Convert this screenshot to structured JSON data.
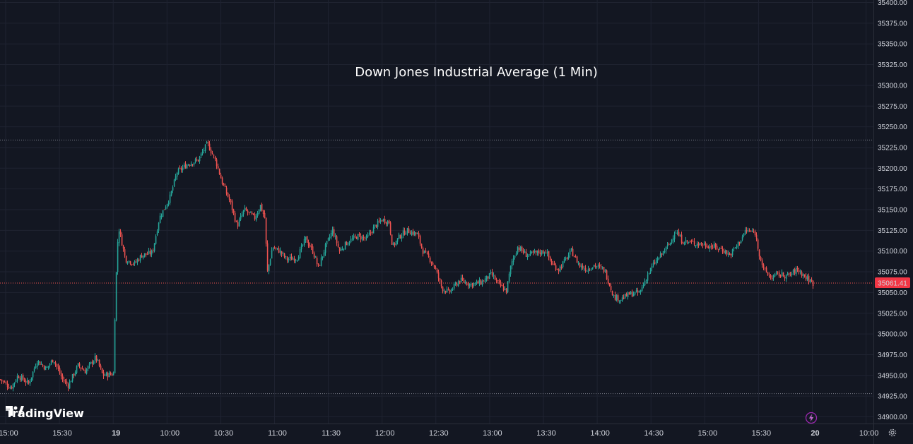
{
  "brand": {
    "name": "TradingView",
    "icon": "tradingview-logo"
  },
  "colors": {
    "background": "#131722",
    "grid": "#1f2331",
    "up": "#26a69a",
    "down": "#ef5350",
    "text": "#d1d4dc",
    "price_label_bg": "#f23645",
    "dotted_line": "#787b86"
  },
  "icons": {
    "settings": "gear-icon",
    "replay": "lightning-icon"
  },
  "chart_data": {
    "type": "candlestick",
    "title": "Down Jones Industrial Average (1 Min)",
    "xlabel": "",
    "ylabel": "",
    "ylim": [
      34887.5,
      35400
    ],
    "yticks": [
      "35400.00",
      "35375.00",
      "35350.00",
      "35325.00",
      "35300.00",
      "35275.00",
      "35250.00",
      "35225.00",
      "35200.00",
      "35175.00",
      "35150.00",
      "35125.00",
      "35100.00",
      "35075.00",
      "35050.00",
      "35025.00",
      "35000.00",
      "34975.00",
      "34950.00",
      "34925.00",
      "34900.00"
    ],
    "xticks": [
      "15:00",
      "15:30",
      "19",
      "10:00",
      "10:30",
      "11:00",
      "11:30",
      "12:00",
      "12:30",
      "13:00",
      "13:30",
      "14:00",
      "14:30",
      "15:00",
      "15:30",
      "20",
      "10:00"
    ],
    "last_price": 35061.41,
    "last_price_label": "35061.41",
    "high_line": 35234,
    "low_line": 34928,
    "grid": true,
    "path": [
      [
        0,
        34945
      ],
      [
        15,
        34935
      ],
      [
        25,
        34950
      ],
      [
        40,
        34940
      ],
      [
        52,
        34968
      ],
      [
        65,
        34958
      ],
      [
        75,
        34970
      ],
      [
        88,
        34945
      ],
      [
        96,
        34938
      ],
      [
        110,
        34962
      ],
      [
        120,
        34955
      ],
      [
        135,
        34972
      ],
      [
        145,
        34950
      ],
      [
        160,
        34952
      ],
      [
        163,
        35055
      ],
      [
        167,
        35130
      ],
      [
        177,
        35090
      ],
      [
        190,
        35085
      ],
      [
        200,
        35095
      ],
      [
        215,
        35098
      ],
      [
        225,
        35140
      ],
      [
        240,
        35165
      ],
      [
        250,
        35195
      ],
      [
        265,
        35205
      ],
      [
        280,
        35210
      ],
      [
        293,
        35230
      ],
      [
        305,
        35208
      ],
      [
        315,
        35180
      ],
      [
        325,
        35160
      ],
      [
        335,
        35130
      ],
      [
        345,
        35150
      ],
      [
        360,
        35140
      ],
      [
        368,
        35155
      ],
      [
        374,
        35140
      ],
      [
        378,
        35075
      ],
      [
        385,
        35105
      ],
      [
        395,
        35100
      ],
      [
        405,
        35090
      ],
      [
        420,
        35092
      ],
      [
        432,
        35115
      ],
      [
        442,
        35100
      ],
      [
        450,
        35080
      ],
      [
        460,
        35105
      ],
      [
        470,
        35125
      ],
      [
        480,
        35100
      ],
      [
        490,
        35110
      ],
      [
        505,
        35118
      ],
      [
        518,
        35115
      ],
      [
        530,
        35130
      ],
      [
        540,
        35138
      ],
      [
        550,
        35135
      ],
      [
        555,
        35105
      ],
      [
        565,
        35118
      ],
      [
        575,
        35125
      ],
      [
        590,
        35120
      ],
      [
        598,
        35100
      ],
      [
        608,
        35090
      ],
      [
        615,
        35080
      ],
      [
        625,
        35055
      ],
      [
        635,
        35050
      ],
      [
        650,
        35065
      ],
      [
        665,
        35060
      ],
      [
        680,
        35062
      ],
      [
        695,
        35072
      ],
      [
        705,
        35060
      ],
      [
        716,
        35052
      ],
      [
        723,
        35085
      ],
      [
        732,
        35105
      ],
      [
        745,
        35095
      ],
      [
        760,
        35098
      ],
      [
        772,
        35100
      ],
      [
        780,
        35085
      ],
      [
        790,
        35078
      ],
      [
        800,
        35090
      ],
      [
        808,
        35100
      ],
      [
        820,
        35082
      ],
      [
        830,
        35078
      ],
      [
        840,
        35083
      ],
      [
        855,
        35077
      ],
      [
        868,
        35045
      ],
      [
        878,
        35042
      ],
      [
        890,
        35048
      ],
      [
        905,
        35050
      ],
      [
        915,
        35070
      ],
      [
        925,
        35085
      ],
      [
        935,
        35095
      ],
      [
        948,
        35110
      ],
      [
        955,
        35125
      ],
      [
        965,
        35112
      ],
      [
        980,
        35110
      ],
      [
        995,
        35108
      ],
      [
        1010,
        35105
      ],
      [
        1022,
        35102
      ],
      [
        1032,
        35095
      ],
      [
        1045,
        35110
      ],
      [
        1055,
        35125
      ],
      [
        1068,
        35122
      ],
      [
        1073,
        35100
      ],
      [
        1080,
        35078
      ],
      [
        1090,
        35068
      ],
      [
        1100,
        35072
      ],
      [
        1115,
        35070
      ],
      [
        1128,
        35078
      ],
      [
        1140,
        35068
      ],
      [
        1150,
        35061
      ]
    ]
  }
}
